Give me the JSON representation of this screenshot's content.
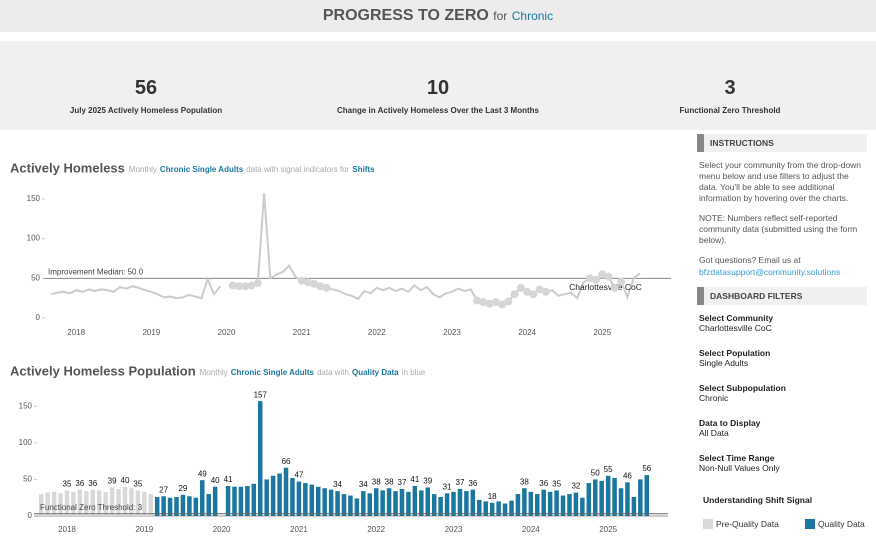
{
  "header": {
    "title": "PROGRESS TO ZERO",
    "for": "for",
    "population": "Chronic"
  },
  "kpis": [
    {
      "value": 56,
      "label": "July 2025 Actively Homeless Population"
    },
    {
      "value": 10,
      "label": "Change in Actively Homeless Over the Last 3 Months"
    },
    {
      "value": 3,
      "label": "Functional Zero Threshold"
    }
  ],
  "chart_data": [
    {
      "type": "line",
      "title": "Actively Homeless",
      "subtitle": [
        "Monthly",
        "Chronic Single Adults",
        "data with signal indicators for",
        "Shifts"
      ],
      "categories": [
        null,
        null,
        null,
        null,
        "2018",
        null,
        null,
        null,
        null,
        null,
        null,
        null,
        null,
        null,
        null,
        null,
        "2019",
        null,
        null,
        null,
        null,
        null,
        null,
        null,
        null,
        null,
        null,
        null,
        "2020",
        null,
        null,
        null,
        null,
        null,
        null,
        null,
        null,
        null,
        null,
        null,
        "2021",
        null,
        null,
        null,
        null,
        null,
        null,
        null,
        null,
        null,
        null,
        null,
        "2022",
        null,
        null,
        null,
        null,
        null,
        null,
        null,
        null,
        null,
        null,
        null,
        "2023",
        null,
        null,
        null,
        null,
        null,
        null,
        null,
        null,
        null,
        null,
        null,
        "2024",
        null,
        null,
        null,
        null,
        null,
        null,
        null,
        null,
        null,
        null,
        null,
        "2025",
        null,
        null,
        null,
        null,
        null,
        null
      ],
      "series": [
        {
          "name": "Charlottesville CoC",
          "color": "#cccccc",
          "values": [
            30,
            32,
            33,
            31,
            35,
            33,
            36,
            34,
            36,
            35,
            33,
            39,
            37,
            40,
            38,
            35,
            33,
            30,
            26,
            27,
            25,
            26,
            29,
            27,
            25,
            49,
            30,
            40,
            null,
            41,
            40,
            40,
            41,
            44,
            157,
            50,
            55,
            58,
            66,
            52,
            47,
            45,
            43,
            40,
            38,
            36,
            34,
            30,
            28,
            24,
            34,
            31,
            38,
            35,
            38,
            34,
            37,
            33,
            41,
            35,
            39,
            30,
            26,
            31,
            33,
            37,
            34,
            36,
            22,
            20,
            18,
            20,
            17,
            21,
            30,
            38,
            33,
            30,
            36,
            33,
            35,
            28,
            30,
            32,
            25,
            45,
            50,
            48,
            55,
            52,
            38,
            46,
            26,
            50,
            56
          ]
        }
      ],
      "signal_points": {
        "color": "#d6d6d6",
        "values": [
          null,
          null,
          null,
          null,
          null,
          null,
          null,
          null,
          null,
          null,
          null,
          null,
          null,
          null,
          null,
          null,
          null,
          null,
          null,
          null,
          null,
          null,
          null,
          null,
          null,
          null,
          null,
          null,
          null,
          41,
          40,
          40,
          41,
          44,
          null,
          null,
          null,
          null,
          null,
          null,
          47,
          45,
          43,
          40,
          38,
          null,
          null,
          null,
          null,
          null,
          null,
          null,
          null,
          null,
          null,
          null,
          null,
          null,
          null,
          null,
          null,
          null,
          null,
          null,
          null,
          null,
          null,
          null,
          22,
          20,
          18,
          20,
          17,
          21,
          30,
          38,
          33,
          30,
          36,
          33,
          null,
          null,
          null,
          null,
          null,
          null,
          50,
          48,
          55,
          52,
          38,
          46,
          null,
          null,
          null
        ]
      },
      "reference_line": {
        "value": 50,
        "label": "Improvement Median: 50.0"
      },
      "ylim": [
        0,
        160
      ],
      "yticks": [
        0,
        50,
        100,
        150
      ]
    },
    {
      "type": "bar",
      "title": "Actively Homeless Population",
      "subtitle": [
        "Monthly",
        "Chronic Single Adults",
        "data with",
        "Quality Data",
        "in blue"
      ],
      "categories": [
        null,
        null,
        null,
        null,
        "2018",
        null,
        null,
        null,
        null,
        null,
        null,
        null,
        null,
        null,
        null,
        null,
        "2019",
        null,
        null,
        null,
        null,
        null,
        null,
        null,
        null,
        null,
        null,
        null,
        "2020",
        null,
        null,
        null,
        null,
        null,
        null,
        null,
        null,
        null,
        null,
        null,
        "2021",
        null,
        null,
        null,
        null,
        null,
        null,
        null,
        null,
        null,
        null,
        null,
        "2022",
        null,
        null,
        null,
        null,
        null,
        null,
        null,
        null,
        null,
        null,
        null,
        "2023",
        null,
        null,
        null,
        null,
        null,
        null,
        null,
        null,
        null,
        null,
        null,
        "2024",
        null,
        null,
        null,
        null,
        null,
        null,
        null,
        null,
        null,
        null,
        null,
        "2025",
        null,
        null,
        null,
        null,
        null,
        null
      ],
      "series": [
        {
          "name": "Pre-Quality Data",
          "color": "#d9d9d9",
          "values": [
            30,
            32,
            33,
            31,
            35,
            33,
            36,
            34,
            36,
            35,
            33,
            39,
            37,
            40,
            38,
            35,
            33,
            30,
            null,
            null,
            null,
            null,
            null,
            null,
            null,
            null,
            null,
            null,
            null,
            null,
            null,
            null,
            null,
            null,
            null,
            null,
            null,
            null,
            null,
            null,
            null,
            null,
            null,
            null,
            null,
            null,
            null,
            null,
            null,
            null,
            null,
            null,
            null,
            null,
            null,
            null,
            null,
            null,
            null,
            null,
            null,
            null,
            null,
            null,
            null,
            null,
            null,
            null,
            null,
            null,
            null,
            null,
            null,
            null,
            null,
            null,
            null,
            null,
            null,
            null,
            null,
            null,
            null,
            null,
            null,
            null,
            null,
            null,
            null,
            null,
            null,
            null,
            null,
            null,
            null
          ],
          "value_labels": [
            null,
            null,
            null,
            null,
            "35",
            null,
            "36",
            null,
            "36",
            null,
            null,
            "39",
            null,
            "40",
            null,
            "35",
            null,
            null,
            null,
            null,
            null,
            null,
            null,
            null,
            null,
            null,
            null,
            null,
            null,
            null,
            null,
            null,
            null,
            null,
            null,
            null,
            null,
            null,
            null,
            null,
            null,
            null,
            null,
            null,
            null,
            null,
            null,
            null,
            null,
            null,
            null,
            null,
            null,
            null,
            null,
            null,
            null,
            null,
            null,
            null,
            null,
            null,
            null,
            null,
            null,
            null,
            null,
            null,
            null,
            null,
            null,
            null,
            null,
            null,
            null,
            null,
            null,
            null,
            null,
            null,
            null,
            null,
            null,
            null,
            null,
            null,
            null,
            null,
            null,
            null,
            null,
            null,
            null,
            null,
            null
          ]
        },
        {
          "name": "Quality Data",
          "color": "#1c77a0",
          "values": [
            null,
            null,
            null,
            null,
            null,
            null,
            null,
            null,
            null,
            null,
            null,
            null,
            null,
            null,
            null,
            null,
            null,
            null,
            26,
            27,
            25,
            26,
            29,
            27,
            25,
            49,
            30,
            40,
            null,
            41,
            40,
            40,
            41,
            44,
            157,
            50,
            55,
            58,
            66,
            52,
            47,
            45,
            43,
            40,
            38,
            36,
            34,
            30,
            28,
            24,
            34,
            31,
            38,
            35,
            38,
            34,
            37,
            33,
            41,
            35,
            39,
            30,
            26,
            31,
            33,
            37,
            34,
            36,
            22,
            20,
            18,
            20,
            17,
            21,
            30,
            38,
            33,
            30,
            36,
            33,
            35,
            28,
            30,
            32,
            25,
            45,
            50,
            48,
            55,
            52,
            38,
            46,
            26,
            50,
            56
          ],
          "value_labels": [
            null,
            null,
            null,
            null,
            null,
            null,
            null,
            null,
            null,
            null,
            null,
            null,
            null,
            null,
            null,
            null,
            null,
            null,
            null,
            "27",
            null,
            null,
            "29",
            null,
            null,
            "49",
            null,
            "40",
            null,
            "41",
            null,
            null,
            null,
            null,
            "157",
            null,
            null,
            null,
            "66",
            null,
            "47",
            null,
            null,
            null,
            null,
            null,
            "34",
            null,
            null,
            null,
            "34",
            null,
            "38",
            null,
            "38",
            null,
            "37",
            null,
            "41",
            null,
            "39",
            null,
            null,
            "31",
            null,
            "37",
            null,
            "36",
            null,
            null,
            "18",
            null,
            null,
            null,
            null,
            "38",
            null,
            null,
            "36",
            null,
            "35",
            null,
            null,
            "32",
            null,
            null,
            "50",
            null,
            "55",
            null,
            null,
            "46",
            null,
            null,
            "56"
          ]
        }
      ],
      "reference_line": {
        "value": 3,
        "label": "Functional Zero Threshold: 3"
      },
      "ylim": [
        0,
        160
      ],
      "yticks": [
        0,
        50,
        100,
        150
      ]
    }
  ],
  "sidebar": {
    "instructions_title": "INSTRUCTIONS",
    "instructions": [
      "Select your community from the drop-down menu below and use filters to adjust the data. You'll be able to see additional information by hovering over the charts.",
      "NOTE: Numbers reflect self-reported community data (submitted using the form below).",
      "Got questions?  Email us at"
    ],
    "email": "bfzdatasupport@community.solutions",
    "filters_title": "DASHBOARD FILTERS",
    "filters": [
      {
        "label": "Select Community",
        "value": "Charlottesville CoC"
      },
      {
        "label": "Select Population",
        "value": "Single Adults"
      },
      {
        "label": "Select Subpopulation",
        "value": "Chronic"
      },
      {
        "label": "Data to Display",
        "value": "All Data"
      },
      {
        "label": "Select Time Range",
        "value": "Non-Null Values Only"
      }
    ],
    "shift_title": "Understanding Shift Signal"
  }
}
